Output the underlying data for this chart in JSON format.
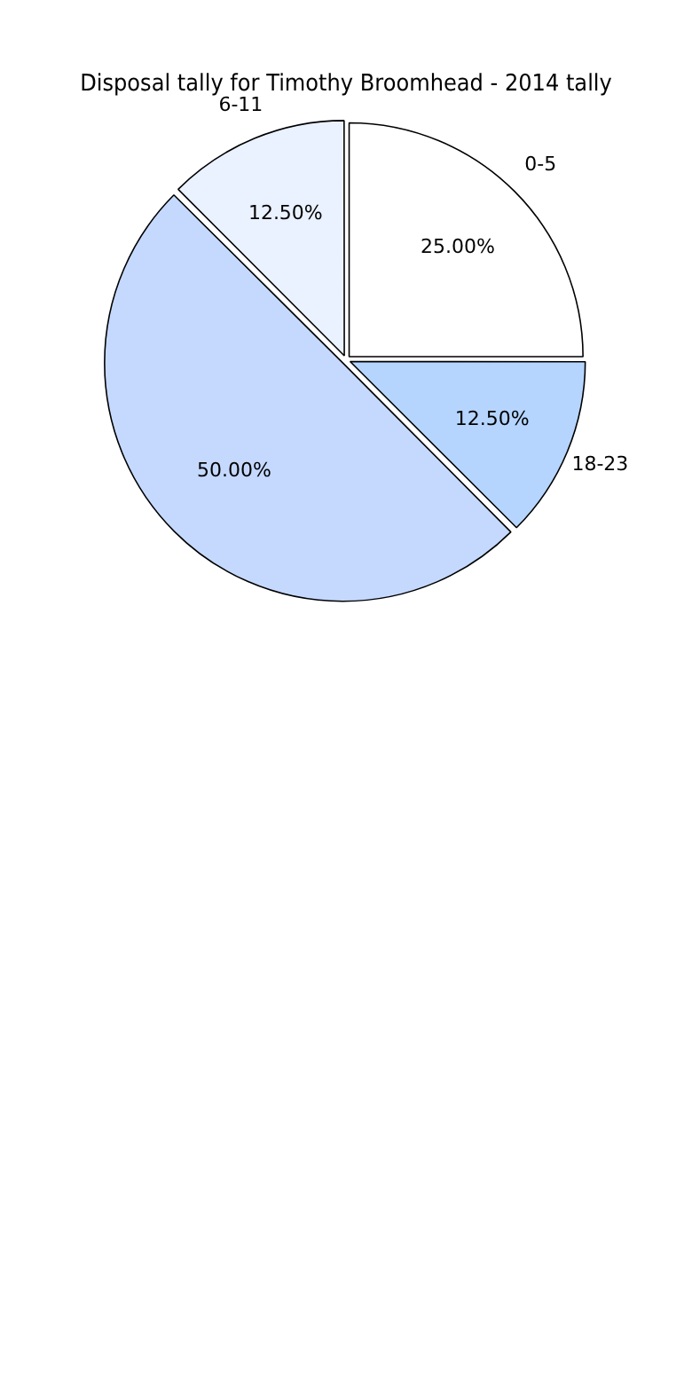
{
  "chart_data": {
    "type": "pie",
    "title": "Disposal tally for Timothy Broomhead - 2014 tally",
    "categories": [
      "0-5",
      "18-23",
      null,
      "6-11"
    ],
    "values": [
      25,
      12.5,
      50,
      12.5
    ],
    "value_labels": [
      "25.00%",
      "12.50%",
      "50.00%",
      "12.50%"
    ],
    "colors": [
      "#ffffff",
      "#b5d5ff",
      "#c5d9ff",
      "#eaf1ff"
    ],
    "legend": false
  }
}
